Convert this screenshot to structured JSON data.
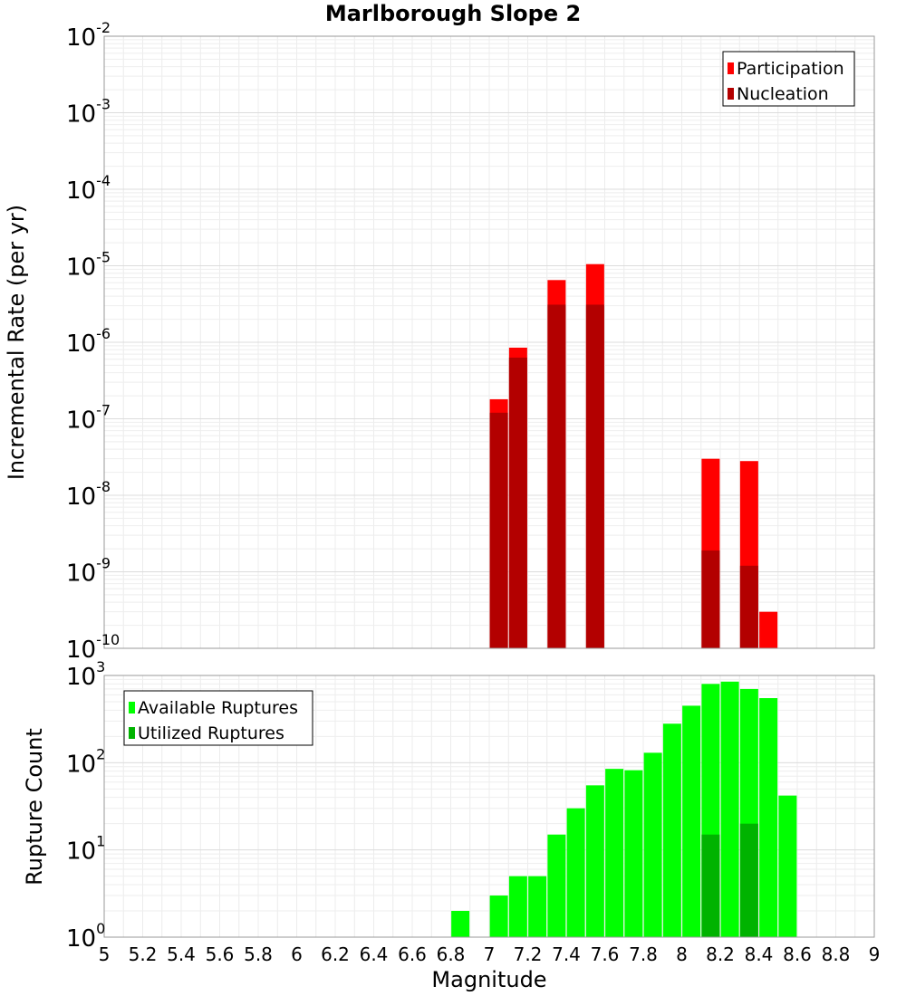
{
  "title": "Marlborough Slope 2",
  "xlabel": "Magnitude",
  "chart_data": [
    {
      "type": "bar",
      "ylabel": "Incremental Rate (per yr)",
      "yscale": "log",
      "ylim_exponents": [
        -10,
        -2
      ],
      "xlim": [
        5,
        9
      ],
      "grid": true,
      "legend_placement": "top-right",
      "series": [
        {
          "name": "Participation",
          "color": "#ff0000",
          "x": [
            7.05,
            7.15,
            7.35,
            7.55,
            8.15,
            8.35,
            8.45
          ],
          "values": [
            1.8e-07,
            8.5e-07,
            6.5e-06,
            1.05e-05,
            3e-08,
            2.8e-08,
            3e-10
          ]
        },
        {
          "name": "Nucleation",
          "color": "#b30000",
          "x": [
            7.05,
            7.15,
            7.35,
            7.55,
            8.15,
            8.35
          ],
          "values": [
            1.2e-07,
            6.3e-07,
            3.1e-06,
            3.1e-06,
            1.9e-09,
            1.2e-09
          ]
        }
      ]
    },
    {
      "type": "bar",
      "ylabel": "Rupture Count",
      "yscale": "log",
      "ylim_exponents": [
        0,
        3
      ],
      "xlim": [
        5,
        9
      ],
      "grid": true,
      "legend_placement": "top-left",
      "series": [
        {
          "name": "Available Ruptures",
          "color": "#00ff00",
          "x": [
            6.85,
            7.05,
            7.15,
            7.25,
            7.35,
            7.45,
            7.55,
            7.65,
            7.75,
            7.85,
            7.95,
            8.05,
            8.15,
            8.25,
            8.35,
            8.45,
            8.55
          ],
          "values": [
            2,
            3,
            5,
            5,
            15,
            30,
            55,
            85,
            82,
            130,
            280,
            450,
            800,
            850,
            700,
            550,
            42
          ]
        },
        {
          "name": "Utilized Ruptures",
          "color": "#00b300",
          "x": [
            7.05,
            7.15,
            7.35,
            7.55,
            7.95,
            8.15,
            8.35,
            8.45
          ],
          "values": [
            1,
            1,
            1,
            1,
            1,
            15,
            20,
            1
          ]
        }
      ]
    }
  ],
  "x_ticks": [
    "5",
    "5.2",
    "5.4",
    "5.6",
    "5.8",
    "6",
    "6.2",
    "6.4",
    "6.6",
    "6.8",
    "7",
    "7.2",
    "7.4",
    "7.6",
    "7.8",
    "8",
    "8.2",
    "8.4",
    "8.6",
    "8.8",
    "9"
  ],
  "top_ytick_exps": [
    "-10",
    "-9",
    "-8",
    "-7",
    "-6",
    "-5",
    "-4",
    "-3",
    "-2"
  ],
  "bottom_ytick_exps": [
    "0",
    "1",
    "2",
    "3"
  ],
  "ytick_base": "10"
}
